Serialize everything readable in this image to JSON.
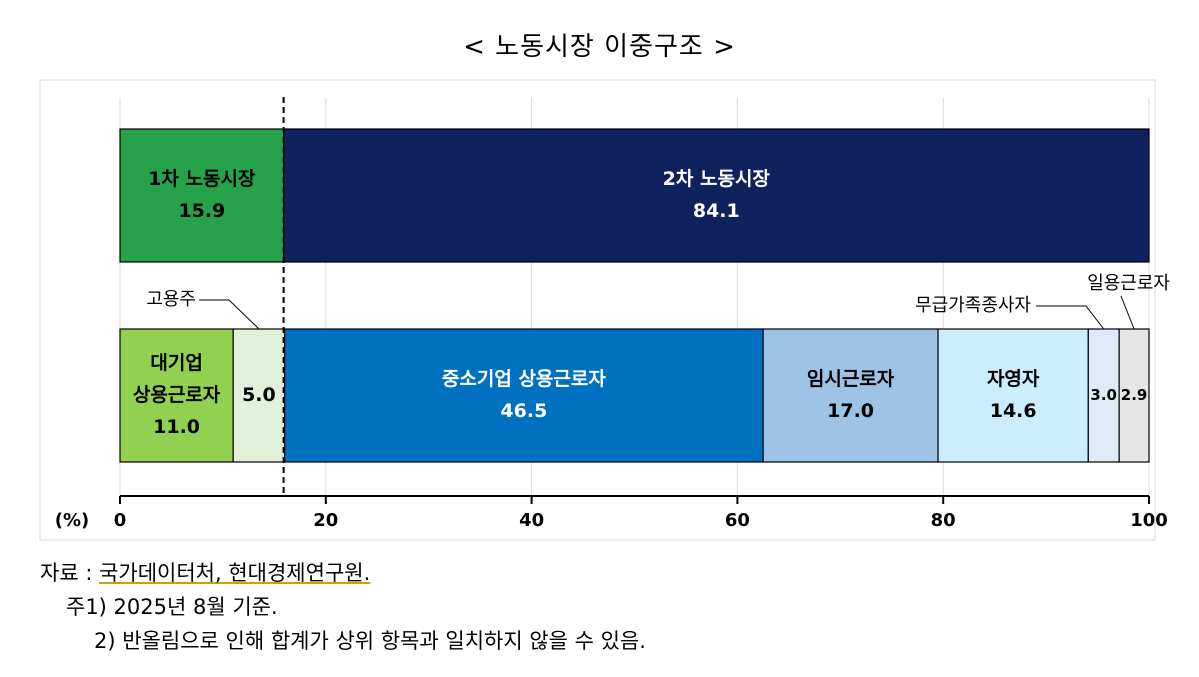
{
  "chart_data": {
    "type": "bar",
    "orientation": "horizontal",
    "stacked": true,
    "title": "< 노동시장 이중구조 >",
    "xlabel": "(%)",
    "xlim": [
      0,
      100
    ],
    "xticks": [
      0,
      20,
      40,
      60,
      80,
      100
    ],
    "divider_at": 15.9,
    "bars": [
      {
        "segments": [
          {
            "name": "1차 노동시장",
            "value": 15.9,
            "value_label": "15.9",
            "color": "#26a34a",
            "text_color": "#000000"
          },
          {
            "name": "2차 노동시장",
            "value": 84.1,
            "value_label": "84.1",
            "color": "#10225e",
            "text_color": "#ffffff"
          }
        ]
      },
      {
        "segments": [
          {
            "name": "대기업\n상용근로자",
            "value": 11.0,
            "value_label": "11.0",
            "color": "#92d050",
            "text_color": "#000000"
          },
          {
            "name": "고용주",
            "value": 5.0,
            "value_label": "5.0",
            "color": "#e2f0d9",
            "text_color": "#000000",
            "callout": true
          },
          {
            "name": "중소기업 상용근로자",
            "value": 46.5,
            "value_label": "46.5",
            "color": "#0070c0",
            "text_color": "#ffffff"
          },
          {
            "name": "임시근로자",
            "value": 17.0,
            "value_label": "17.0",
            "color": "#9dc3e6",
            "text_color": "#000000"
          },
          {
            "name": "자영자",
            "value": 14.6,
            "value_label": "14.6",
            "color": "#ccecff",
            "text_color": "#000000"
          },
          {
            "name": "무급가족종사자",
            "value": 3.0,
            "value_label": "3.0",
            "color": "#deebf7",
            "text_color": "#000000",
            "callout": true
          },
          {
            "name": "일용근로자",
            "value": 2.9,
            "value_label": "2.9",
            "color": "#e7e6e6",
            "text_color": "#000000",
            "callout": true
          }
        ]
      }
    ]
  },
  "notes": {
    "source_label": "자료 :",
    "source": "국가데이터처, 현대경제연구원.",
    "note1": "주1) 2025년 8월 기준.",
    "note2": "2) 반올림으로 인해 합계가 상위 항목과 일치하지 않을 수 있음."
  }
}
